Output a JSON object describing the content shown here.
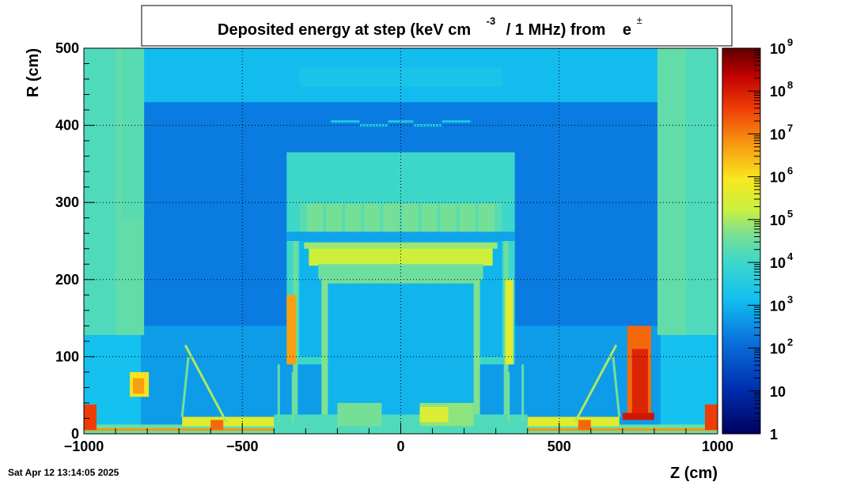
{
  "chart_data": {
    "type": "heatmap",
    "title": {
      "main": "Deposited energy at step (keV cm",
      "exp": "-3",
      "middle": "/ 1 MHz)  from",
      "particle": "e",
      "particle_sup": "±"
    },
    "xlabel": "Z (cm)",
    "ylabel": "R (cm)",
    "xlim": [
      -1000,
      1000
    ],
    "ylim": [
      0,
      500
    ],
    "x_ticks": [
      -1000,
      -500,
      0,
      500,
      1000
    ],
    "x_tick_labels": [
      "−1000",
      "−500",
      "0",
      "500",
      "1000"
    ],
    "y_ticks": [
      0,
      100,
      200,
      300,
      400,
      500
    ],
    "y_tick_labels": [
      "0",
      "100",
      "200",
      "300",
      "400",
      "500"
    ],
    "grid": true,
    "colorbar": {
      "scale": "log",
      "range": [
        1,
        1000000000
      ],
      "ticks": [
        {
          "value": 1,
          "base": "1",
          "exp": ""
        },
        {
          "value": 10,
          "base": "10",
          "exp": ""
        },
        {
          "value": 100,
          "base": "10",
          "exp": "2"
        },
        {
          "value": 1000,
          "base": "10",
          "exp": "3"
        },
        {
          "value": 10000,
          "base": "10",
          "exp": "4"
        },
        {
          "value": 100000,
          "base": "10",
          "exp": "5"
        },
        {
          "value": 1000000,
          "base": "10",
          "exp": "6"
        },
        {
          "value": 10000000,
          "base": "10",
          "exp": "7"
        },
        {
          "value": 100000000,
          "base": "10",
          "exp": "8"
        },
        {
          "value": 1000000000,
          "base": "10",
          "exp": "9"
        }
      ]
    },
    "regions": [
      {
        "name": "background",
        "z": [
          -1000,
          1000
        ],
        "r": [
          0,
          500
        ],
        "log10": 3.0
      },
      {
        "name": "cavern-top",
        "z": [
          -820,
          820
        ],
        "r": [
          430,
          500
        ],
        "log10": 3.1
      },
      {
        "name": "cavern-top-light",
        "z": [
          -320,
          320
        ],
        "r": [
          450,
          475
        ],
        "log10": 3.3
      },
      {
        "name": "hall-inner",
        "z": [
          -820,
          820
        ],
        "r": [
          0,
          430
        ],
        "log10": 2.3
      },
      {
        "name": "hall-lower",
        "z": [
          -820,
          820
        ],
        "r": [
          0,
          140
        ],
        "log10": 2.7
      },
      {
        "name": "left-endcap-wall",
        "z": [
          -1000,
          -810
        ],
        "r": [
          128,
          500
        ],
        "log10": 4.4
      },
      {
        "name": "left-endcap-inner",
        "z": [
          -1000,
          -900
        ],
        "r": [
          128,
          500
        ],
        "log10": 4.2
      },
      {
        "name": "left-endcap-upper",
        "z": [
          -880,
          -810
        ],
        "r": [
          280,
          500
        ],
        "log10": 4.3
      },
      {
        "name": "right-endcap-wall",
        "z": [
          810,
          1000
        ],
        "r": [
          128,
          500
        ],
        "log10": 4.4
      },
      {
        "name": "right-endcap-inner",
        "z": [
          900,
          1000
        ],
        "r": [
          128,
          500
        ],
        "log10": 4.2
      },
      {
        "name": "left-low-wall",
        "z": [
          -1000,
          -820
        ],
        "r": [
          0,
          128
        ],
        "log10": 3.2
      },
      {
        "name": "right-low-wall",
        "z": [
          820,
          1000
        ],
        "r": [
          0,
          128
        ],
        "log10": 3.2
      },
      {
        "name": "detector-body",
        "z": [
          -360,
          360
        ],
        "r": [
          90,
          365
        ],
        "log10": 4.0
      },
      {
        "name": "detector-inner",
        "z": [
          -320,
          320
        ],
        "r": [
          100,
          300
        ],
        "log10": 3.0
      },
      {
        "name": "muon-stations",
        "z": [
          -320,
          320
        ],
        "r": [
          262,
          300
        ],
        "log10": 4.3
      },
      {
        "name": "blue-gap",
        "z": [
          -360,
          360
        ],
        "r": [
          250,
          262
        ],
        "log10": 2.8
      },
      {
        "name": "calorimeter",
        "z": [
          -290,
          290
        ],
        "r": [
          218,
          245
        ],
        "log10": 5.3
      },
      {
        "name": "calorimeter-edge",
        "z": [
          -305,
          305
        ],
        "r": [
          240,
          248
        ],
        "log10": 4.9
      },
      {
        "name": "calo-base",
        "z": [
          -260,
          260
        ],
        "r": [
          200,
          220
        ],
        "log10": 4.5
      },
      {
        "name": "tracker",
        "z": [
          -230,
          230
        ],
        "r": [
          25,
          200
        ],
        "log10": 3.0
      },
      {
        "name": "tracker-frame",
        "z": [
          -250,
          250
        ],
        "r": [
          195,
          202
        ],
        "log10": 4.6
      },
      {
        "name": "solenoid-left",
        "z": [
          -250,
          -230
        ],
        "r": [
          25,
          200
        ],
        "log10": 4.7
      },
      {
        "name": "solenoid-right",
        "z": [
          230,
          250
        ],
        "r": [
          25,
          200
        ],
        "log10": 4.7
      },
      {
        "name": "bar-left-outer",
        "z": [
          -340,
          -325
        ],
        "r": [
          25,
          250
        ],
        "log10": 4.5
      },
      {
        "name": "bar-right-outer",
        "z": [
          325,
          340
        ],
        "r": [
          25,
          250
        ],
        "log10": 4.5
      },
      {
        "name": "hot-left",
        "z": [
          -360,
          -330
        ],
        "r": [
          90,
          180
        ],
        "log10": 6.7
      },
      {
        "name": "hot-right",
        "z": [
          330,
          355
        ],
        "r": [
          90,
          200
        ],
        "log10": 5.6
      },
      {
        "name": "beampipe-region",
        "z": [
          -1000,
          1000
        ],
        "r": [
          0,
          12
        ],
        "log10": 4.5
      },
      {
        "name": "beampipe-hot",
        "z": [
          -1000,
          1000
        ],
        "r": [
          4,
          7
        ],
        "log10": 6.8
      },
      {
        "name": "left-block",
        "z": [
          -855,
          -795
        ],
        "r": [
          48,
          80
        ],
        "log10": 6.0
      },
      {
        "name": "left-block-inner",
        "z": [
          -845,
          -810
        ],
        "r": [
          52,
          72
        ],
        "log10": 6.7
      },
      {
        "name": "far-left-hot",
        "z": [
          -1000,
          -960
        ],
        "r": [
          5,
          38
        ],
        "log10": 7.6
      },
      {
        "name": "far-right-hot",
        "z": [
          960,
          1000
        ],
        "r": [
          5,
          38
        ],
        "log10": 7.6
      },
      {
        "name": "right-hot-column",
        "z": [
          715,
          790
        ],
        "r": [
          20,
          140
        ],
        "log10": 7.2
      },
      {
        "name": "right-hot-core",
        "z": [
          730,
          780
        ],
        "r": [
          20,
          110
        ],
        "log10": 7.9
      },
      {
        "name": "right-hot-base",
        "z": [
          700,
          800
        ],
        "r": [
          18,
          27
        ],
        "log10": 8.1
      },
      {
        "name": "floor-band-left",
        "z": [
          -690,
          -400
        ],
        "r": [
          10,
          22
        ],
        "log10": 5.6
      },
      {
        "name": "floor-band-right",
        "z": [
          400,
          690
        ],
        "r": [
          10,
          22
        ],
        "log10": 5.6
      },
      {
        "name": "floor-hot-left",
        "z": [
          -600,
          -560
        ],
        "r": [
          5,
          18
        ],
        "log10": 7.2
      },
      {
        "name": "floor-hot-right",
        "z": [
          560,
          600
        ],
        "r": [
          5,
          18
        ],
        "log10": 7.2
      },
      {
        "name": "floor-mid",
        "z": [
          -400,
          400
        ],
        "r": [
          0,
          25
        ],
        "log10": 4.2
      },
      {
        "name": "nose-left",
        "z": [
          -200,
          -60
        ],
        "r": [
          10,
          40
        ],
        "log10": 4.6
      },
      {
        "name": "nose-right",
        "z": [
          60,
          230
        ],
        "r": [
          10,
          40
        ],
        "log10": 4.8
      },
      {
        "name": "nose-right-hot",
        "z": [
          60,
          150
        ],
        "r": [
          15,
          35
        ],
        "log10": 5.5
      }
    ],
    "lines": [
      {
        "z1": -690,
        "r1": 22,
        "z2": -670,
        "r2": 100,
        "log10": 4.6
      },
      {
        "z1": -550,
        "r1": 15,
        "z2": -680,
        "r2": 115,
        "log10": 5.0
      },
      {
        "z1": -385,
        "r1": 15,
        "z2": -385,
        "r2": 90,
        "log10": 4.4
      },
      {
        "z1": -340,
        "r1": 15,
        "z2": -340,
        "r2": 80,
        "log10": 4.6
      },
      {
        "z1": 385,
        "r1": 15,
        "z2": 385,
        "r2": 90,
        "log10": 4.4
      },
      {
        "z1": 340,
        "r1": 15,
        "z2": 340,
        "r2": 80,
        "log10": 4.6
      },
      {
        "z1": 690,
        "r1": 22,
        "z2": 670,
        "r2": 100,
        "log10": 4.6
      },
      {
        "z1": 550,
        "r1": 15,
        "z2": 680,
        "r2": 115,
        "log10": 5.0
      },
      {
        "z1": -220,
        "r1": 405,
        "z2": -130,
        "r2": 405,
        "log10": 3.4
      },
      {
        "z1": -130,
        "r1": 400,
        "z2": -40,
        "r2": 400,
        "log10": 3.4
      },
      {
        "z1": -40,
        "r1": 405,
        "z2": 40,
        "r2": 405,
        "log10": 3.4
      },
      {
        "z1": 40,
        "r1": 400,
        "z2": 130,
        "r2": 400,
        "log10": 3.4
      },
      {
        "z1": 130,
        "r1": 405,
        "z2": 220,
        "r2": 405,
        "log10": 3.4
      }
    ],
    "muon_chambers_z": [
      -300,
      -240,
      -180,
      -120,
      -60,
      0,
      60,
      120,
      180,
      240
    ]
  },
  "timestamp": "Sat Apr 12 13:14:05 2025"
}
